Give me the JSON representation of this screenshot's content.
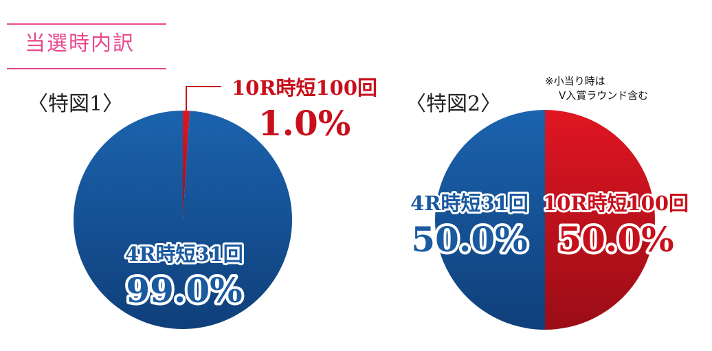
{
  "header": {
    "title": "当選時内訳"
  },
  "colors": {
    "red": "#c8101c",
    "blue": "#1a5aa0",
    "pink": "#e8478d"
  },
  "chart_data": [
    {
      "type": "pie",
      "title": "〈特図1〉",
      "slices": [
        {
          "label": "10R時短100回",
          "value": 1.0,
          "percent_label": "1.0%"
        },
        {
          "label": "4R時短31回",
          "value": 99.0,
          "percent_label": "99.0%"
        }
      ]
    },
    {
      "type": "pie",
      "title": "〈特図2〉",
      "note": [
        "※小当り時は",
        "V入賞ラウンド含む"
      ],
      "slices": [
        {
          "label": "10R時短100回",
          "value": 50.0,
          "percent_label": "50.0%"
        },
        {
          "label": "4R時短31回",
          "value": 50.0,
          "percent_label": "50.0%"
        }
      ]
    }
  ]
}
